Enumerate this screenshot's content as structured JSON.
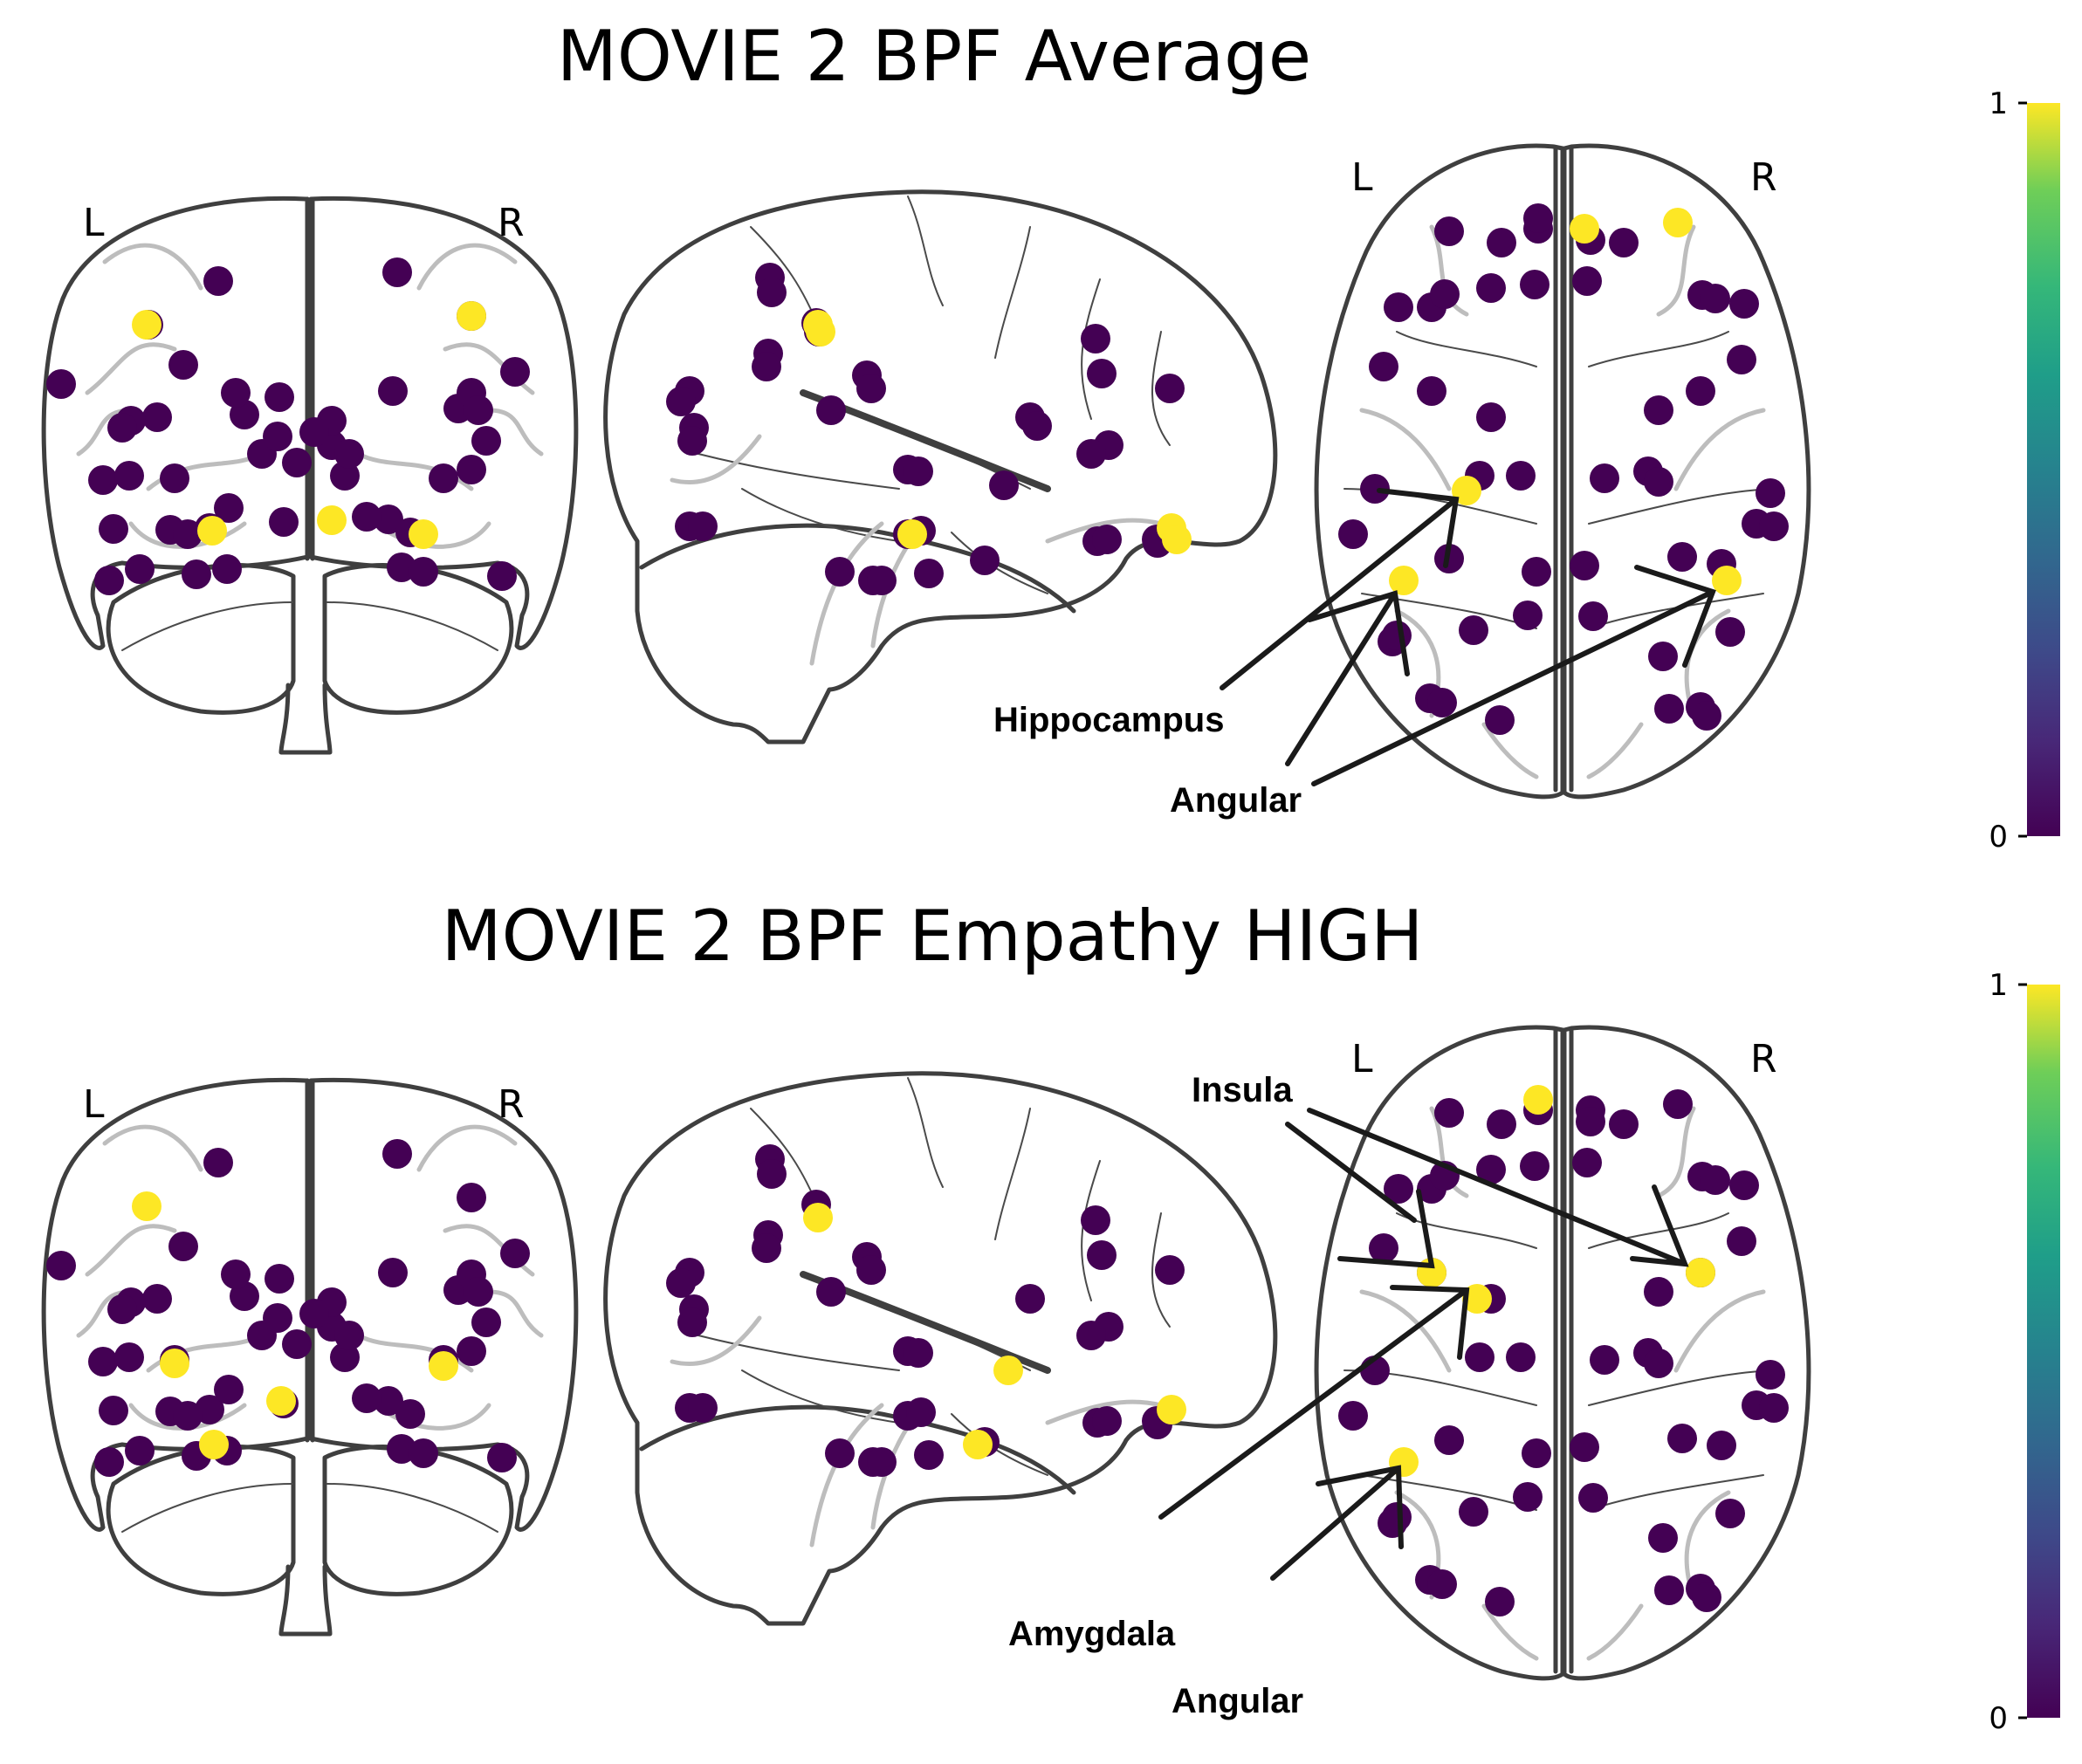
{
  "panels": [
    {
      "title": "MOVIE 2 BPF Average",
      "views": {
        "coronal": {
          "left": "L",
          "right": "R"
        },
        "axial": {
          "left": "L",
          "right": "R"
        }
      },
      "annotations": [
        "Hippocampus",
        "Angular"
      ],
      "colorbar": {
        "min_label": "0",
        "max_label": "1",
        "colormap": "viridis"
      }
    },
    {
      "title": "MOVIE 2 BPF Empathy HIGH",
      "views": {
        "coronal": {
          "left": "L",
          "right": "R"
        },
        "axial": {
          "left": "L",
          "right": "R"
        }
      },
      "annotations": [
        "Insula",
        "Amygdala",
        "Angular"
      ],
      "colorbar": {
        "min_label": "0",
        "max_label": "1",
        "colormap": "viridis"
      }
    }
  ],
  "colors": {
    "node_low": "#440154",
    "node_high": "#fde725",
    "outline": "#3f3f3f"
  }
}
